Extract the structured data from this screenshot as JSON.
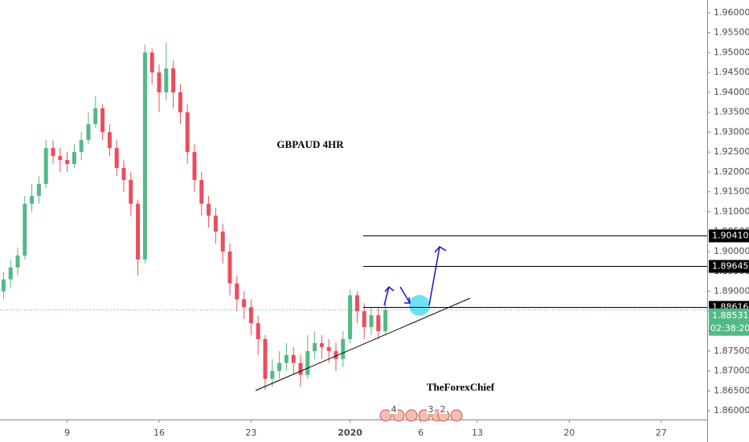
{
  "chart_data": {
    "type": "candlestick",
    "title": "GBPAUD 4HR",
    "author": "TheForexChief",
    "x": [
      0,
      1,
      2,
      3,
      4,
      5,
      6,
      7,
      8,
      9,
      10,
      11,
      12,
      13,
      14,
      15,
      16,
      17,
      18,
      19,
      20,
      21,
      22,
      23,
      24,
      25,
      26,
      27,
      28,
      29,
      30,
      31,
      32,
      33,
      34,
      35,
      36,
      37,
      38,
      39,
      40,
      41,
      42,
      43,
      44,
      45,
      46,
      47,
      48,
      49,
      50,
      51,
      52,
      53,
      54
    ],
    "open": [
      1.89,
      1.893,
      1.896,
      1.899,
      1.912,
      1.914,
      1.917,
      1.926,
      1.924,
      1.923,
      1.922,
      1.925,
      1.928,
      1.932,
      1.936,
      1.93,
      1.926,
      1.921,
      1.918,
      1.912,
      1.898,
      1.95,
      1.945,
      1.94,
      1.946,
      1.94,
      1.935,
      1.925,
      1.918,
      1.912,
      1.909,
      1.905,
      1.9,
      1.892,
      1.888,
      1.886,
      1.882,
      1.878,
      1.868,
      1.87,
      1.872,
      1.874,
      1.872,
      1.869,
      1.875,
      1.877,
      1.876,
      1.875,
      1.873,
      1.878,
      1.889,
      1.885,
      1.881,
      1.884,
      1.88
    ],
    "high": [
      1.895,
      1.898,
      1.901,
      1.914,
      1.917,
      1.919,
      1.928,
      1.928,
      1.926,
      1.925,
      1.927,
      1.93,
      1.935,
      1.939,
      1.937,
      1.932,
      1.928,
      1.923,
      1.92,
      1.913,
      1.952,
      1.951,
      1.947,
      1.9525,
      1.948,
      1.942,
      1.937,
      1.927,
      1.92,
      1.914,
      1.911,
      1.907,
      1.902,
      1.894,
      1.89,
      1.888,
      1.884,
      1.879,
      1.873,
      1.875,
      1.877,
      1.876,
      1.874,
      1.879,
      1.88,
      1.879,
      1.878,
      1.877,
      1.88,
      1.8905,
      1.89,
      1.887,
      1.886,
      1.886,
      1.887
    ],
    "low": [
      1.888,
      1.891,
      1.894,
      1.898,
      1.91,
      1.912,
      1.916,
      1.922,
      1.92,
      1.92,
      1.921,
      1.923,
      1.927,
      1.931,
      1.928,
      1.924,
      1.919,
      1.915,
      1.909,
      1.894,
      1.897,
      1.942,
      1.935,
      1.938,
      1.936,
      1.932,
      1.922,
      1.915,
      1.909,
      1.906,
      1.902,
      1.897,
      1.889,
      1.885,
      1.883,
      1.879,
      1.874,
      1.8652,
      1.866,
      1.868,
      1.87,
      1.869,
      1.866,
      1.868,
      1.873,
      1.873,
      1.872,
      1.87,
      1.871,
      1.877,
      1.882,
      1.878,
      1.879,
      1.878,
      1.879
    ],
    "close": [
      1.893,
      1.896,
      1.899,
      1.912,
      1.914,
      1.917,
      1.926,
      1.924,
      1.923,
      1.922,
      1.925,
      1.928,
      1.932,
      1.936,
      1.93,
      1.926,
      1.921,
      1.918,
      1.912,
      1.898,
      1.95,
      1.945,
      1.94,
      1.946,
      1.94,
      1.935,
      1.925,
      1.918,
      1.912,
      1.909,
      1.905,
      1.9,
      1.892,
      1.888,
      1.886,
      1.882,
      1.878,
      1.868,
      1.87,
      1.872,
      1.874,
      1.872,
      1.869,
      1.875,
      1.877,
      1.876,
      1.875,
      1.873,
      1.878,
      1.889,
      1.885,
      1.881,
      1.884,
      1.88,
      1.8853
    ],
    "up_color": "#53b987",
    "down_color": "#eb4d5c",
    "xlim": [
      -0.5,
      99.5
    ],
    "ylim": [
      1.8578,
      1.9632
    ],
    "xticks": [
      {
        "value": 9,
        "label": "9"
      },
      {
        "value": 22,
        "label": "16"
      },
      {
        "value": 35,
        "label": "23"
      },
      {
        "value": 49,
        "label": "2020"
      },
      {
        "value": 59,
        "label": "6"
      },
      {
        "value": 67,
        "label": "13"
      },
      {
        "value": 80,
        "label": "20"
      },
      {
        "value": 93,
        "label": "27"
      }
    ],
    "yticks": [
      {
        "value": 1.86,
        "label": "1.86000"
      },
      {
        "value": 1.865,
        "label": "1.86500"
      },
      {
        "value": 1.87,
        "label": "1.87000"
      },
      {
        "value": 1.875,
        "label": "1.87500"
      },
      {
        "value": 1.88,
        "label": "1.88000"
      },
      {
        "value": 1.885,
        "label": "1.88500"
      },
      {
        "value": 1.89,
        "label": "1.89000"
      },
      {
        "value": 1.895,
        "label": "1.89500"
      },
      {
        "value": 1.9,
        "label": "1.90000"
      },
      {
        "value": 1.905,
        "label": "1.90500"
      },
      {
        "value": 1.91,
        "label": "1.91000"
      },
      {
        "value": 1.915,
        "label": "1.91500"
      },
      {
        "value": 1.92,
        "label": "1.92000"
      },
      {
        "value": 1.925,
        "label": "1.92500"
      },
      {
        "value": 1.93,
        "label": "1.93000"
      },
      {
        "value": 1.935,
        "label": "1.93500"
      },
      {
        "value": 1.94,
        "label": "1.94000"
      },
      {
        "value": 1.945,
        "label": "1.94500"
      },
      {
        "value": 1.95,
        "label": "1.95000"
      },
      {
        "value": 1.955,
        "label": "1.95500"
      },
      {
        "value": 1.96,
        "label": "1.96000"
      }
    ],
    "levels": [
      {
        "value": 1.9041,
        "label": "1.90410"
      },
      {
        "value": 1.89645,
        "label": "1.89645"
      },
      {
        "value": 1.88616,
        "label": "1.88616"
      }
    ],
    "last_price": {
      "value": 1.88531,
      "label": "1.88531"
    },
    "countdown": "02:38:20",
    "events": [
      "4",
      "3",
      "2"
    ]
  }
}
